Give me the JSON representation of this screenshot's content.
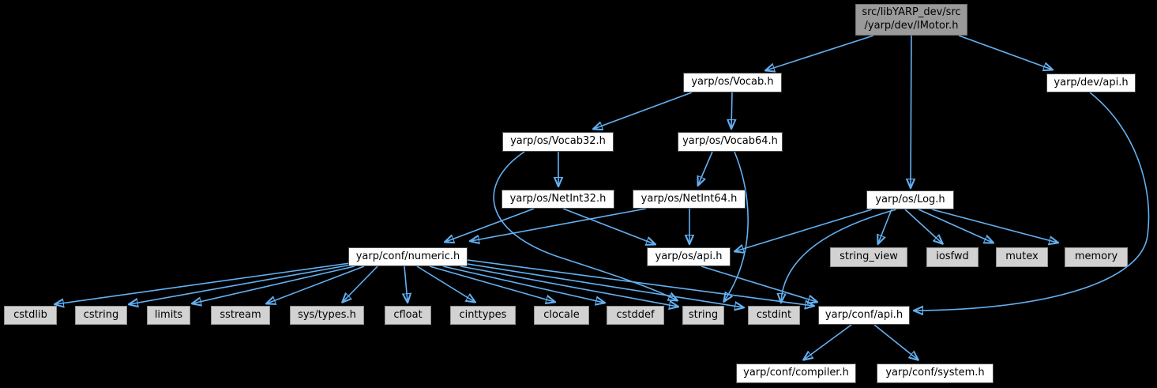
{
  "diagram": {
    "kind": "include-dependency-graph",
    "colors": {
      "background": "#000000",
      "edge": "#63b1f3",
      "node_background": "#ffffff",
      "node_border": "#4a4a4a",
      "system_node_background": "#d2d2d2",
      "system_node_border": "#8f8f8f",
      "current_node_background": "#9a9a9a"
    },
    "nodes": {
      "imotor": {
        "label": "src/libYARP_dev/src\n/yarp/dev/IMotor.h"
      },
      "vocab": {
        "label": "yarp/os/Vocab.h"
      },
      "devapi": {
        "label": "yarp/dev/api.h"
      },
      "vocab32": {
        "label": "yarp/os/Vocab32.h"
      },
      "vocab64": {
        "label": "yarp/os/Vocab64.h"
      },
      "netint32": {
        "label": "yarp/os/NetInt32.h"
      },
      "netint64": {
        "label": "yarp/os/NetInt64.h"
      },
      "log": {
        "label": "yarp/os/Log.h"
      },
      "numeric": {
        "label": "yarp/conf/numeric.h"
      },
      "osapi": {
        "label": "yarp/os/api.h"
      },
      "stringview": {
        "label": "string_view"
      },
      "iosfwd": {
        "label": "iosfwd"
      },
      "mutex": {
        "label": "mutex"
      },
      "memory": {
        "label": "memory"
      },
      "cstdlib": {
        "label": "cstdlib"
      },
      "cstring": {
        "label": "cstring"
      },
      "limits": {
        "label": "limits"
      },
      "sstream": {
        "label": "sstream"
      },
      "systypes": {
        "label": "sys/types.h"
      },
      "cfloat": {
        "label": "cfloat"
      },
      "cinttypes": {
        "label": "cinttypes"
      },
      "clocale": {
        "label": "clocale"
      },
      "cstddef": {
        "label": "cstddef"
      },
      "string": {
        "label": "string"
      },
      "cstdint": {
        "label": "cstdint"
      },
      "confapi": {
        "label": "yarp/conf/api.h"
      },
      "compiler": {
        "label": "yarp/conf/compiler.h"
      },
      "system": {
        "label": "yarp/conf/system.h"
      }
    },
    "edges": [
      {
        "from": "imotor",
        "to": "vocab"
      },
      {
        "from": "imotor",
        "to": "log"
      },
      {
        "from": "imotor",
        "to": "devapi"
      },
      {
        "from": "vocab",
        "to": "vocab32"
      },
      {
        "from": "vocab",
        "to": "vocab64"
      },
      {
        "from": "vocab32",
        "to": "netint32"
      },
      {
        "from": "vocab32",
        "to": "string"
      },
      {
        "from": "vocab64",
        "to": "netint64"
      },
      {
        "from": "vocab64",
        "to": "string"
      },
      {
        "from": "netint32",
        "to": "numeric"
      },
      {
        "from": "netint32",
        "to": "osapi"
      },
      {
        "from": "netint64",
        "to": "numeric"
      },
      {
        "from": "netint64",
        "to": "osapi"
      },
      {
        "from": "log",
        "to": "osapi"
      },
      {
        "from": "log",
        "to": "stringview"
      },
      {
        "from": "log",
        "to": "iosfwd"
      },
      {
        "from": "log",
        "to": "mutex"
      },
      {
        "from": "log",
        "to": "memory"
      },
      {
        "from": "log",
        "to": "cstdint"
      },
      {
        "from": "osapi",
        "to": "confapi"
      },
      {
        "from": "devapi",
        "to": "confapi"
      },
      {
        "from": "numeric",
        "to": "cstdlib"
      },
      {
        "from": "numeric",
        "to": "cstring"
      },
      {
        "from": "numeric",
        "to": "limits"
      },
      {
        "from": "numeric",
        "to": "sstream"
      },
      {
        "from": "numeric",
        "to": "systypes"
      },
      {
        "from": "numeric",
        "to": "cfloat"
      },
      {
        "from": "numeric",
        "to": "cinttypes"
      },
      {
        "from": "numeric",
        "to": "clocale"
      },
      {
        "from": "numeric",
        "to": "cstddef"
      },
      {
        "from": "numeric",
        "to": "string"
      },
      {
        "from": "numeric",
        "to": "cstdint"
      },
      {
        "from": "numeric",
        "to": "confapi"
      },
      {
        "from": "confapi",
        "to": "compiler"
      },
      {
        "from": "confapi",
        "to": "system"
      }
    ]
  }
}
